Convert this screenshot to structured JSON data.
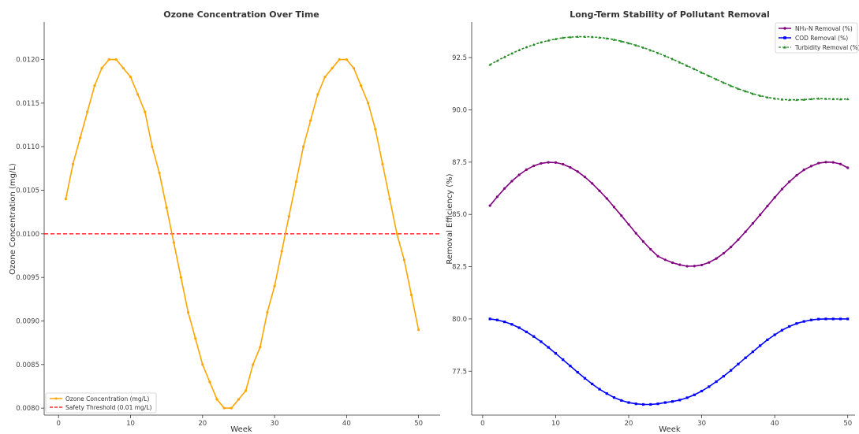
{
  "chart_data": [
    {
      "type": "line",
      "title": "Ozone Concentration Over Time",
      "xlabel": "Week",
      "ylabel": "Ozone Concentration (mg/L)",
      "xlim": [
        -2,
        53
      ],
      "ylim": [
        0.00792,
        0.01243
      ],
      "x_ticks": [
        0,
        10,
        20,
        30,
        40,
        50
      ],
      "y_ticks": [
        0.008,
        0.0085,
        0.009,
        0.0095,
        0.01,
        0.0105,
        0.011,
        0.0115,
        0.012
      ],
      "y_tick_labels": [
        "0.0080",
        "0.0085",
        "0.0090",
        "0.0095",
        "0.0100",
        "0.0105",
        "0.0110",
        "0.0115",
        "0.0120"
      ],
      "legend_position": "bottom-left",
      "series": [
        {
          "name": "Ozone Concentration (mg/L)",
          "color": "#FFA500",
          "marker": "dot",
          "x": [
            1,
            2,
            3,
            4,
            5,
            6,
            7,
            8,
            9,
            10,
            11,
            12,
            13,
            14,
            15,
            16,
            17,
            18,
            19,
            20,
            21,
            22,
            23,
            24,
            25,
            26,
            27,
            28,
            29,
            30,
            31,
            32,
            33,
            34,
            35,
            36,
            37,
            38,
            39,
            40,
            41,
            42,
            43,
            44,
            45,
            46,
            47,
            48,
            49,
            50
          ],
          "y": [
            0.0104,
            0.0108,
            0.0111,
            0.0114,
            0.0117,
            0.0119,
            0.012,
            0.012,
            0.0119,
            0.0118,
            0.0116,
            0.0114,
            0.011,
            0.0107,
            0.0103,
            0.0099,
            0.0095,
            0.0091,
            0.0088,
            0.0085,
            0.0083,
            0.0081,
            0.008,
            0.008,
            0.0081,
            0.0082,
            0.0085,
            0.0087,
            0.0091,
            0.0094,
            0.0098,
            0.0102,
            0.0106,
            0.011,
            0.0113,
            0.0116,
            0.0118,
            0.0119,
            0.012,
            0.012,
            0.0119,
            0.0117,
            0.0115,
            0.0112,
            0.0108,
            0.0104,
            0.01,
            0.0097,
            0.0093,
            0.0089
          ]
        }
      ],
      "hlines": [
        {
          "name": "Safety Threshold (0.01 mg/L)",
          "y": 0.01,
          "color": "#FF0000",
          "style": "dashed"
        }
      ]
    },
    {
      "type": "line",
      "title": "Long-Term Stability of Pollutant Removal",
      "xlabel": "Week",
      "ylabel": "Removal Efficiency (%)",
      "xlim": [
        -1.5,
        51
      ],
      "ylim": [
        75.4,
        94.2
      ],
      "x_ticks": [
        0,
        10,
        20,
        30,
        40,
        50
      ],
      "y_ticks": [
        77.5,
        80.0,
        82.5,
        85.0,
        87.5,
        90.0,
        92.5
      ],
      "y_tick_labels": [
        "77.5",
        "80.0",
        "82.5",
        "85.0",
        "87.5",
        "90.0",
        "92.5"
      ],
      "legend_position": "top-right",
      "series": [
        {
          "name": "NH₃-N Removal (%)",
          "color": "#800080",
          "marker": "dot",
          "x": [
            1,
            2,
            3,
            4,
            5,
            6,
            7,
            8,
            9,
            10,
            11,
            12,
            13,
            14,
            15,
            16,
            17,
            18,
            19,
            20,
            21,
            22,
            23,
            24,
            25,
            26,
            27,
            28,
            29,
            30,
            31,
            32,
            33,
            34,
            35,
            36,
            37,
            38,
            39,
            40,
            41,
            42,
            43,
            44,
            45,
            46,
            47,
            48,
            49,
            50
          ],
          "y": [
            85.42,
            85.84,
            86.24,
            86.59,
            86.89,
            87.14,
            87.32,
            87.44,
            87.49,
            87.48,
            87.4,
            87.25,
            87.05,
            86.79,
            86.48,
            86.13,
            85.76,
            85.35,
            84.94,
            84.52,
            84.1,
            83.7,
            83.33,
            83.0,
            82.83,
            82.69,
            82.59,
            82.52,
            82.53,
            82.58,
            82.7,
            82.89,
            83.14,
            83.44,
            83.79,
            84.17,
            84.57,
            84.98,
            85.4,
            85.81,
            86.21,
            86.56,
            86.87,
            87.13,
            87.31,
            87.45,
            87.5,
            87.49,
            87.41,
            87.23
          ]
        },
        {
          "name": "COD Removal (%)",
          "color": "#0000FF",
          "marker": "square",
          "x": [
            1,
            2,
            3,
            4,
            5,
            6,
            7,
            8,
            9,
            10,
            11,
            12,
            13,
            14,
            15,
            16,
            17,
            18,
            19,
            20,
            21,
            22,
            23,
            24,
            25,
            26,
            27,
            28,
            29,
            30,
            31,
            32,
            33,
            34,
            35,
            36,
            37,
            38,
            39,
            40,
            41,
            42,
            43,
            44,
            45,
            46,
            47,
            48,
            49,
            50
          ],
          "y": [
            80.0,
            79.95,
            79.86,
            79.74,
            79.58,
            79.38,
            79.16,
            78.91,
            78.64,
            78.35,
            78.05,
            77.75,
            77.45,
            77.16,
            76.89,
            76.64,
            76.43,
            76.24,
            76.1,
            76.0,
            75.94,
            75.91,
            75.91,
            75.94,
            76.0,
            76.05,
            76.12,
            76.23,
            76.37,
            76.55,
            76.76,
            77.0,
            77.26,
            77.54,
            77.84,
            78.14,
            78.43,
            78.72,
            79.0,
            79.24,
            79.46,
            79.64,
            79.78,
            79.88,
            79.95,
            79.99,
            80.0,
            80.0,
            80.0,
            80.0
          ]
        },
        {
          "name": "Turbidity Removal (%)",
          "color": "#228B22",
          "marker": "triangle",
          "style": "dashed",
          "x": [
            1,
            2,
            3,
            4,
            5,
            6,
            7,
            8,
            9,
            10,
            11,
            12,
            13,
            14,
            15,
            16,
            17,
            18,
            19,
            20,
            21,
            22,
            23,
            24,
            25,
            26,
            27,
            28,
            29,
            30,
            31,
            32,
            33,
            34,
            35,
            36,
            37,
            38,
            39,
            40,
            41,
            42,
            43,
            44,
            45,
            46,
            47,
            48,
            49,
            50
          ],
          "y": [
            92.16,
            92.35,
            92.53,
            92.7,
            92.86,
            93.0,
            93.12,
            93.23,
            93.32,
            93.39,
            93.45,
            93.48,
            93.5,
            93.5,
            93.49,
            93.46,
            93.42,
            93.36,
            93.28,
            93.19,
            93.09,
            92.98,
            92.85,
            92.72,
            92.58,
            92.43,
            92.27,
            92.11,
            91.95,
            91.78,
            91.62,
            91.46,
            91.3,
            91.15,
            91.01,
            90.89,
            90.77,
            90.68,
            90.6,
            90.54,
            90.5,
            90.48,
            90.48,
            90.49,
            90.52,
            90.54,
            90.53,
            90.52,
            90.51,
            90.52
          ]
        }
      ]
    }
  ]
}
